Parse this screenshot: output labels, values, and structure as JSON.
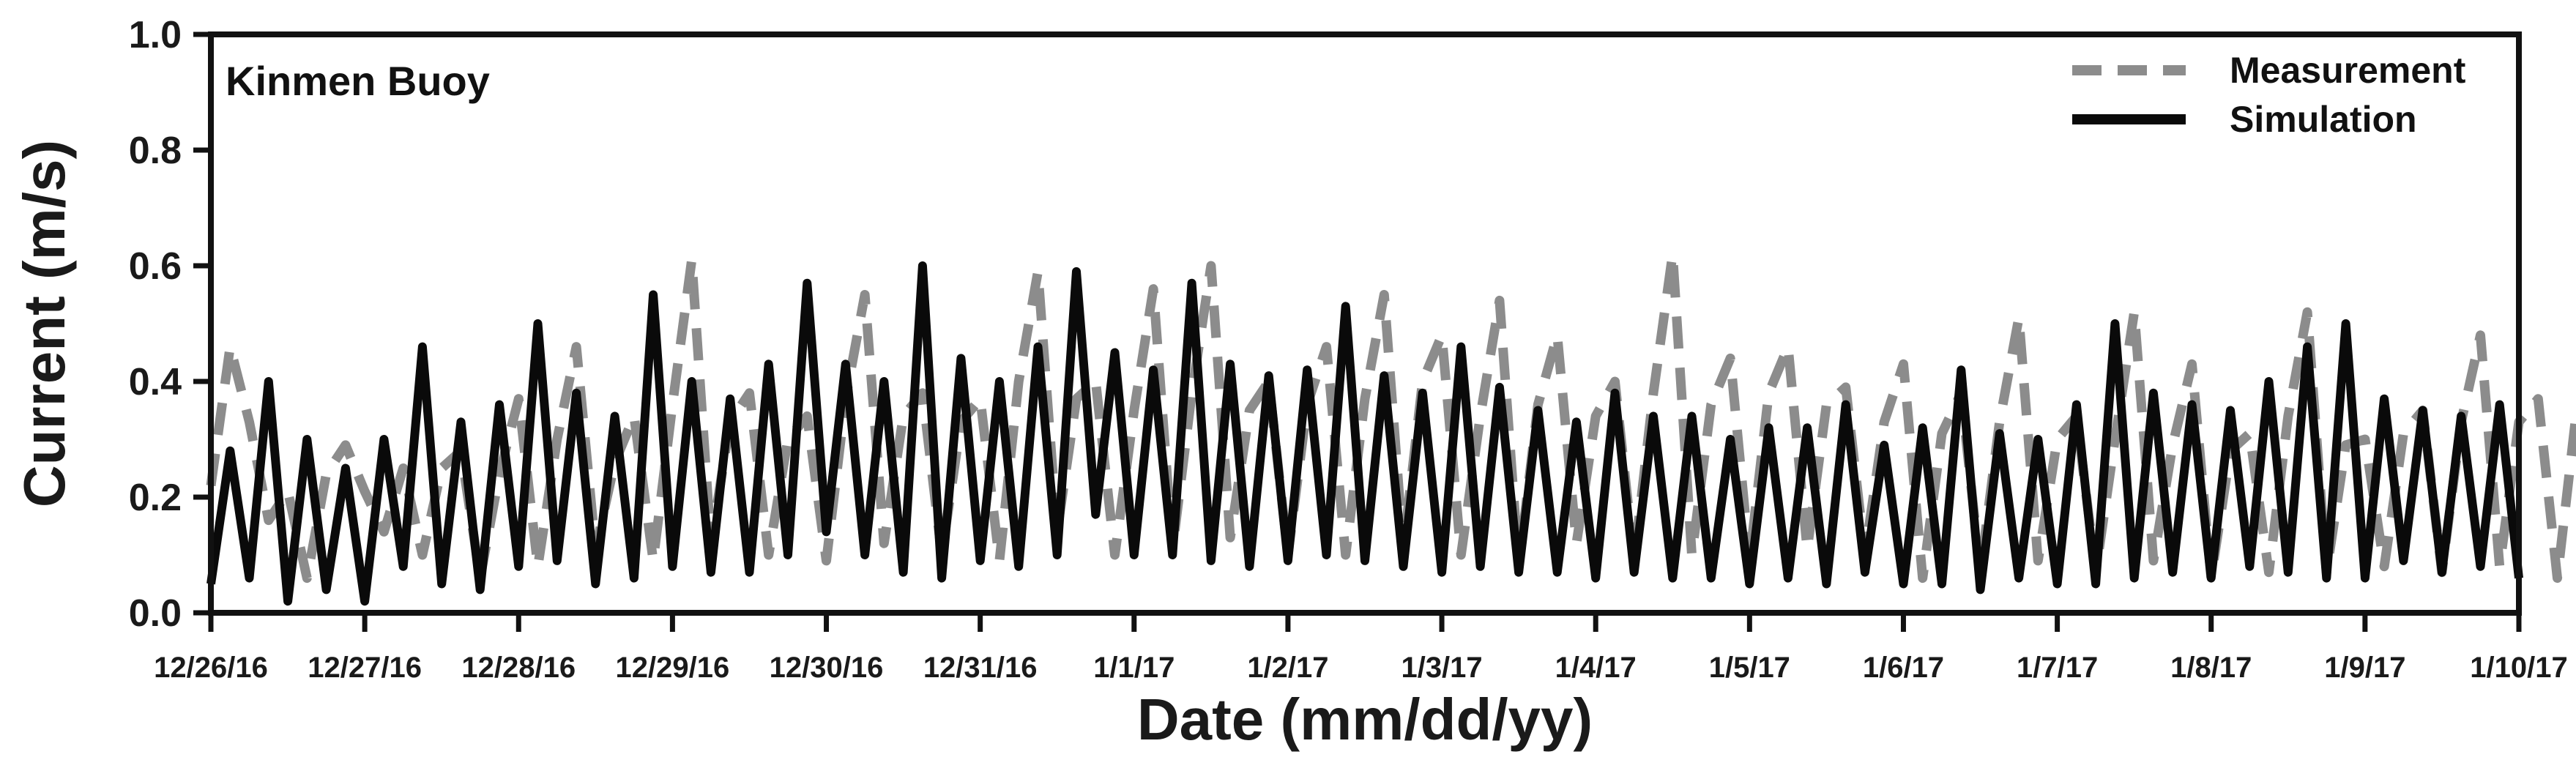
{
  "chart_data": {
    "type": "line",
    "title": "",
    "annotation": "Kinmen Buoy",
    "xlabel": "Date (mm/dd/yy)",
    "ylabel": "Current (m/s)",
    "ylim": [
      0.0,
      1.0
    ],
    "xlim": [
      "2016-12-26",
      "2017-01-10"
    ],
    "yticks": [
      "0.0",
      "0.2",
      "0.4",
      "0.6",
      "0.8",
      "1.0"
    ],
    "xticks": [
      "12/26/16",
      "12/27/16",
      "12/28/16",
      "12/29/16",
      "12/30/16",
      "12/31/16",
      "1/1/17",
      "1/2/17",
      "1/3/17",
      "1/4/17",
      "1/5/17",
      "1/6/17",
      "1/7/17",
      "1/8/17",
      "1/9/17",
      "1/10/17"
    ],
    "legend_position": "top-right",
    "grid": false,
    "series": [
      {
        "name": "Measurement",
        "color": "#8c8c8c",
        "style": "dashed",
        "x_start": "12/26/16",
        "x_step_hours": 3,
        "values": [
          0.22,
          0.46,
          0.33,
          0.16,
          0.21,
          0.06,
          0.24,
          0.29,
          0.21,
          0.14,
          0.25,
          0.1,
          0.25,
          0.28,
          0.06,
          0.24,
          0.37,
          0.08,
          0.3,
          0.46,
          0.11,
          0.26,
          0.34,
          0.09,
          0.36,
          0.61,
          0.12,
          0.33,
          0.38,
          0.1,
          0.3,
          0.34,
          0.09,
          0.37,
          0.55,
          0.12,
          0.34,
          0.38,
          0.1,
          0.33,
          0.37,
          0.09,
          0.4,
          0.59,
          0.14,
          0.37,
          0.4,
          0.1,
          0.35,
          0.56,
          0.11,
          0.38,
          0.6,
          0.13,
          0.35,
          0.4,
          0.1,
          0.36,
          0.46,
          0.1,
          0.37,
          0.55,
          0.11,
          0.4,
          0.48,
          0.1,
          0.34,
          0.54,
          0.08,
          0.36,
          0.48,
          0.12,
          0.34,
          0.4,
          0.09,
          0.38,
          0.62,
          0.1,
          0.36,
          0.44,
          0.09,
          0.38,
          0.46,
          0.11,
          0.36,
          0.39,
          0.1,
          0.33,
          0.43,
          0.06,
          0.31,
          0.38,
          0.07,
          0.33,
          0.51,
          0.09,
          0.3,
          0.34,
          0.07,
          0.3,
          0.52,
          0.09,
          0.29,
          0.43,
          0.06,
          0.28,
          0.31,
          0.07,
          0.34,
          0.52,
          0.07,
          0.29,
          0.3,
          0.08,
          0.31,
          0.35,
          0.07,
          0.33,
          0.48,
          0.08,
          0.33,
          0.37,
          0.06,
          0.35,
          0.33,
          0.11
        ]
      },
      {
        "name": "Simulation",
        "color": "#0a0a0a",
        "style": "solid",
        "x_start": "12/26/16",
        "x_step_hours": 3,
        "values": [
          0.05,
          0.28,
          0.06,
          0.4,
          0.02,
          0.3,
          0.04,
          0.25,
          0.02,
          0.3,
          0.08,
          0.46,
          0.05,
          0.33,
          0.04,
          0.36,
          0.08,
          0.5,
          0.09,
          0.38,
          0.05,
          0.34,
          0.06,
          0.55,
          0.08,
          0.4,
          0.07,
          0.37,
          0.07,
          0.43,
          0.1,
          0.57,
          0.14,
          0.43,
          0.1,
          0.4,
          0.07,
          0.6,
          0.06,
          0.44,
          0.09,
          0.4,
          0.08,
          0.46,
          0.1,
          0.59,
          0.17,
          0.45,
          0.1,
          0.42,
          0.1,
          0.57,
          0.09,
          0.43,
          0.08,
          0.41,
          0.09,
          0.42,
          0.1,
          0.53,
          0.09,
          0.41,
          0.08,
          0.38,
          0.07,
          0.46,
          0.08,
          0.39,
          0.07,
          0.35,
          0.07,
          0.33,
          0.06,
          0.38,
          0.07,
          0.34,
          0.06,
          0.34,
          0.06,
          0.3,
          0.05,
          0.32,
          0.06,
          0.32,
          0.05,
          0.36,
          0.07,
          0.29,
          0.05,
          0.32,
          0.05,
          0.42,
          0.04,
          0.31,
          0.06,
          0.3,
          0.05,
          0.36,
          0.05,
          0.5,
          0.06,
          0.38,
          0.07,
          0.36,
          0.06,
          0.35,
          0.08,
          0.4,
          0.07,
          0.46,
          0.06,
          0.5,
          0.06,
          0.37,
          0.09,
          0.35,
          0.07,
          0.34,
          0.08,
          0.36,
          0.06
        ]
      }
    ]
  }
}
